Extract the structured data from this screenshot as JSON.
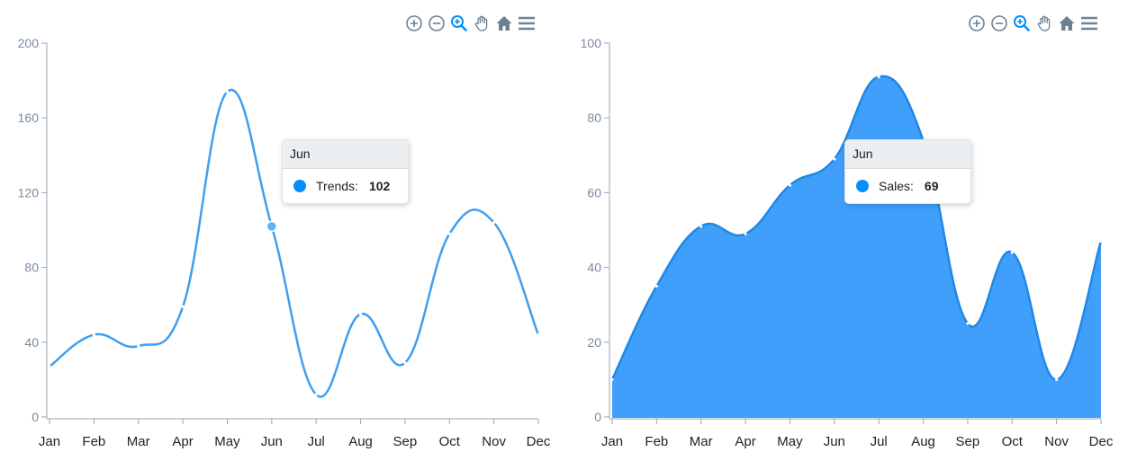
{
  "months": [
    "Jan",
    "Feb",
    "Mar",
    "Apr",
    "May",
    "Jun",
    "Jul",
    "Aug",
    "Sep",
    "Oct",
    "Nov",
    "Dec"
  ],
  "left": {
    "tooltip": {
      "title": "Jun",
      "series_label": "Trends:",
      "value": "102"
    },
    "colors": {
      "line": "#3f9ff0",
      "marker": "#5db3f5",
      "axis": "#9aa6b3"
    }
  },
  "right": {
    "tooltip": {
      "title": "Jun",
      "series_label": "Sales:",
      "value": "69"
    },
    "colors": {
      "fill": "#409ffb",
      "stroke": "#1e88e5",
      "axis": "#9aa6b3"
    }
  },
  "toolbar": {
    "icons": [
      "zoom-in-icon",
      "zoom-out-icon",
      "selection-zoom-icon",
      "pan-hand-icon",
      "home-reset-icon",
      "menu-icon"
    ]
  },
  "chart_data": [
    {
      "type": "line",
      "curve": "smooth",
      "categories": [
        "Jan",
        "Feb",
        "Mar",
        "Apr",
        "May",
        "Jun",
        "Jul",
        "Aug",
        "Sep",
        "Oct",
        "Nov",
        "Dec"
      ],
      "series": [
        {
          "name": "Trends",
          "values": [
            27,
            44,
            38,
            59,
            174,
            102,
            12,
            55,
            29,
            98,
            104,
            44
          ]
        }
      ],
      "ylim": [
        0,
        200
      ],
      "yticks": [
        0,
        40,
        80,
        120,
        160,
        200
      ],
      "highlight_index": 5,
      "title": "",
      "xlabel": "",
      "ylabel": ""
    },
    {
      "type": "area",
      "curve": "smooth",
      "categories": [
        "Jan",
        "Feb",
        "Mar",
        "Apr",
        "May",
        "Jun",
        "Jul",
        "Aug",
        "Sep",
        "Oct",
        "Nov",
        "Dec"
      ],
      "series": [
        {
          "name": "Sales",
          "values": [
            10,
            35,
            51,
            49,
            62,
            69,
            91,
            74,
            25,
            44,
            10,
            47
          ]
        }
      ],
      "ylim": [
        0,
        100
      ],
      "yticks": [
        0,
        20,
        40,
        60,
        80,
        100
      ],
      "highlight_index": 5,
      "title": "",
      "xlabel": "",
      "ylabel": ""
    }
  ]
}
